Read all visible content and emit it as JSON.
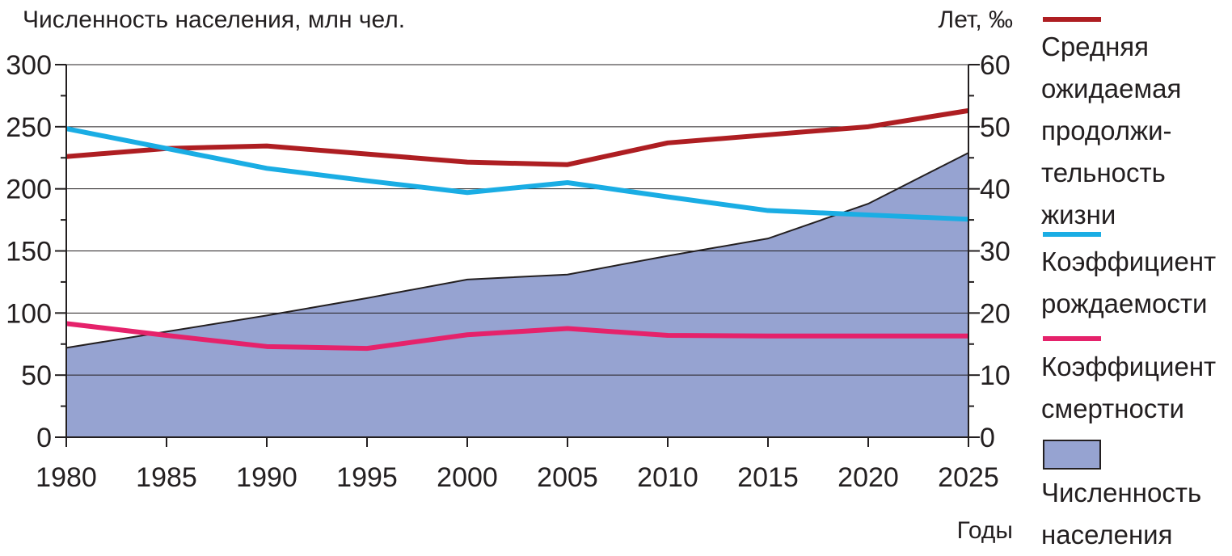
{
  "chart_data": {
    "type": "line",
    "title": "",
    "y_left_label": "Численность населения, млн чел.",
    "y_right_label": "Лет, ‰",
    "x_label": "Годы",
    "x_ticks": [
      "1980",
      "1985",
      "1990",
      "1995",
      "2000",
      "2005",
      "2010",
      "2015",
      "2020",
      "2025"
    ],
    "y_left_ticks": [
      "0",
      "50",
      "100",
      "150",
      "200",
      "250",
      "300"
    ],
    "y_right_ticks": [
      "0",
      "10",
      "20",
      "30",
      "40",
      "50",
      "60"
    ],
    "xlim": [
      1980,
      2025
    ],
    "y_left_lim": [
      0,
      300
    ],
    "y_right_lim": [
      0,
      60
    ],
    "grid": "horizontal",
    "legend_position": "right",
    "series": [
      {
        "name": "Средняя ожидаемая продолжи- тельность жизни",
        "axis": "right",
        "kind": "line",
        "color": "#ae1e22",
        "x": [
          1980,
          1985,
          1990,
          1995,
          2000,
          2005,
          2010,
          2015,
          2020,
          2025
        ],
        "y": [
          45.2,
          46.5,
          46.9,
          45.6,
          44.3,
          43.9,
          47.4,
          48.7,
          50.0,
          52.6
        ]
      },
      {
        "name": "Коэффициент рождаемости",
        "axis": "right",
        "kind": "line",
        "color": "#1aade4",
        "x": [
          1980,
          1985,
          1990,
          1995,
          2000,
          2005,
          2010,
          2015,
          2020,
          2025
        ],
        "y": [
          49.7,
          46.5,
          43.3,
          41.3,
          39.4,
          41.0,
          38.7,
          36.5,
          35.8,
          35.1
        ]
      },
      {
        "name": "Коэффициент смертности",
        "axis": "right",
        "kind": "line",
        "color": "#e5226b",
        "x": [
          1980,
          1985,
          1990,
          1995,
          2000,
          2005,
          2010,
          2015,
          2020,
          2025
        ],
        "y": [
          18.3,
          16.4,
          14.6,
          14.3,
          16.5,
          17.5,
          16.4,
          16.3,
          16.3,
          16.3
        ]
      },
      {
        "name": "Численность населения",
        "axis": "left",
        "kind": "area",
        "color": "#96a3d1",
        "x": [
          1980,
          1985,
          1990,
          1995,
          2000,
          2005,
          2010,
          2015,
          2020,
          2025
        ],
        "y": [
          72,
          85,
          98,
          112,
          127,
          131,
          146,
          160,
          188,
          229
        ]
      }
    ]
  },
  "legend": {
    "life": [
      "Средняя",
      "ожидаемая",
      "продолжи-",
      "тельность",
      "жизни"
    ],
    "birth": [
      "Коэффициент",
      "рождаемости"
    ],
    "death": [
      "Коэффициент",
      "смертности"
    ],
    "population": [
      "Численность",
      "населения"
    ]
  }
}
